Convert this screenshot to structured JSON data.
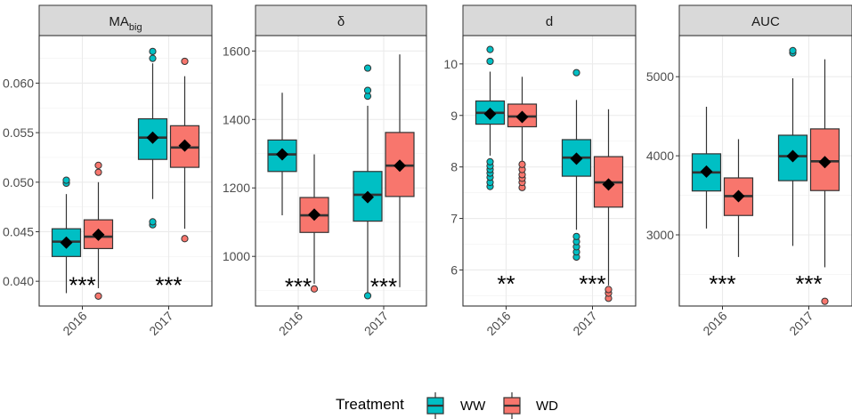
{
  "chart_data": {
    "type": "boxplot",
    "x_categories": [
      "2016",
      "2017"
    ],
    "legend": {
      "title": "Treatment",
      "entries": [
        {
          "name": "WW",
          "color": "#00BFC4"
        },
        {
          "name": "WD",
          "color": "#F8766D"
        }
      ]
    },
    "panels": [
      {
        "key": "mabig",
        "strip_label": "MA",
        "strip_sub": "big",
        "ylim": [
          0.0375,
          0.0648
        ],
        "yticks": [
          0.04,
          0.045,
          0.05,
          0.055,
          0.06
        ],
        "ytick_labels": [
          "0.040",
          "0.045",
          "0.050",
          "0.055",
          "0.060"
        ],
        "significance": [
          "***",
          "***"
        ],
        "sig_y": 0.0397,
        "boxes": [
          {
            "year": "2016",
            "treatment": "WW",
            "q1": 0.0425,
            "median": 0.044,
            "q3": 0.0453,
            "wlow": 0.0388,
            "whigh": 0.0488,
            "mean": 0.0439,
            "outliers": [
              0.0499,
              0.0502
            ]
          },
          {
            "year": "2016",
            "treatment": "WD",
            "q1": 0.0433,
            "median": 0.0445,
            "q3": 0.0462,
            "wlow": 0.0393,
            "whigh": 0.05,
            "mean": 0.0447,
            "outliers": [
              0.0385,
              0.051,
              0.0517
            ]
          },
          {
            "year": "2017",
            "treatment": "WW",
            "q1": 0.0523,
            "median": 0.0545,
            "q3": 0.0564,
            "wlow": 0.0483,
            "whigh": 0.062,
            "mean": 0.0545,
            "outliers": [
              0.0457,
              0.046,
              0.0625,
              0.0632
            ]
          },
          {
            "year": "2017",
            "treatment": "WD",
            "q1": 0.0515,
            "median": 0.0535,
            "q3": 0.0557,
            "wlow": 0.0453,
            "whigh": 0.0607,
            "mean": 0.0537,
            "outliers": [
              0.0443,
              0.0622
            ]
          }
        ]
      },
      {
        "key": "delta",
        "strip_label": "δ",
        "strip_sub": "",
        "ylim": [
          855,
          1645
        ],
        "yticks": [
          1000,
          1200,
          1400,
          1600
        ],
        "ytick_labels": [
          "1000",
          "1200",
          "1400",
          "1600"
        ],
        "significance": [
          "***",
          "***"
        ],
        "sig_y": 915,
        "boxes": [
          {
            "year": "2016",
            "treatment": "WW",
            "q1": 1248,
            "median": 1298,
            "q3": 1340,
            "wlow": 1120,
            "whigh": 1478,
            "mean": 1298,
            "outliers": []
          },
          {
            "year": "2016",
            "treatment": "WD",
            "q1": 1070,
            "median": 1120,
            "q3": 1172,
            "wlow": 920,
            "whigh": 1298,
            "mean": 1122,
            "outliers": [
              905
            ]
          },
          {
            "year": "2017",
            "treatment": "WW",
            "q1": 1103,
            "median": 1180,
            "q3": 1248,
            "wlow": 895,
            "whigh": 1440,
            "mean": 1173,
            "outliers": [
              885,
              1468,
              1485,
              1550
            ]
          },
          {
            "year": "2017",
            "treatment": "WD",
            "q1": 1175,
            "median": 1265,
            "q3": 1362,
            "wlow": 910,
            "whigh": 1590,
            "mean": 1265,
            "outliers": []
          }
        ]
      },
      {
        "key": "d",
        "strip_label": "d",
        "strip_sub": "",
        "ylim": [
          5.3,
          10.55
        ],
        "yticks": [
          6,
          7,
          8,
          9,
          10
        ],
        "ytick_labels": [
          "6",
          "7",
          "8",
          "9",
          "10"
        ],
        "significance": [
          "**",
          "***"
        ],
        "sig_y": 5.75,
        "boxes": [
          {
            "year": "2016",
            "treatment": "WW",
            "q1": 8.83,
            "median": 9.05,
            "q3": 9.28,
            "wlow": 8.22,
            "whigh": 9.85,
            "mean": 9.03,
            "outliers": [
              7.62,
              7.7,
              7.8,
              7.88,
              7.95,
              8.02,
              8.1,
              10.05,
              10.28
            ]
          },
          {
            "year": "2016",
            "treatment": "WD",
            "q1": 8.78,
            "median": 8.98,
            "q3": 9.22,
            "wlow": 8.12,
            "whigh": 9.75,
            "mean": 8.97,
            "outliers": [
              7.6,
              7.7,
              7.78,
              7.85,
              7.95,
              8.05
            ]
          },
          {
            "year": "2017",
            "treatment": "WW",
            "q1": 7.82,
            "median": 8.18,
            "q3": 8.53,
            "wlow": 6.78,
            "whigh": 9.3,
            "mean": 8.16,
            "outliers": [
              6.25,
              6.35,
              6.45,
              6.55,
              6.65,
              9.83
            ]
          },
          {
            "year": "2017",
            "treatment": "WD",
            "q1": 7.22,
            "median": 7.7,
            "q3": 8.2,
            "wlow": 5.7,
            "whigh": 9.12,
            "mean": 7.66,
            "outliers": [
              5.45,
              5.55,
              5.62
            ]
          }
        ]
      },
      {
        "key": "auc",
        "strip_label": "AUC",
        "strip_sub": "",
        "ylim": [
          2100,
          5520
        ],
        "yticks": [
          3000,
          4000,
          5000
        ],
        "ytick_labels": [
          "3000",
          "4000",
          "5000"
        ],
        "significance": [
          "***",
          "***"
        ],
        "sig_y": 2390,
        "boxes": [
          {
            "year": "2016",
            "treatment": "WW",
            "q1": 3555,
            "median": 3790,
            "q3": 4025,
            "wlow": 3080,
            "whigh": 4620,
            "mean": 3800,
            "outliers": []
          },
          {
            "year": "2016",
            "treatment": "WD",
            "q1": 3245,
            "median": 3490,
            "q3": 3720,
            "wlow": 2720,
            "whigh": 4210,
            "mean": 3490,
            "outliers": []
          },
          {
            "year": "2017",
            "treatment": "WW",
            "q1": 3685,
            "median": 3995,
            "q3": 4260,
            "wlow": 2860,
            "whigh": 4980,
            "mean": 3995,
            "outliers": [
              5300,
              5330
            ]
          },
          {
            "year": "2017",
            "treatment": "WD",
            "q1": 3560,
            "median": 3930,
            "q3": 4340,
            "wlow": 2590,
            "whigh": 5220,
            "mean": 3920,
            "outliers": [
              2160
            ]
          }
        ]
      }
    ]
  }
}
